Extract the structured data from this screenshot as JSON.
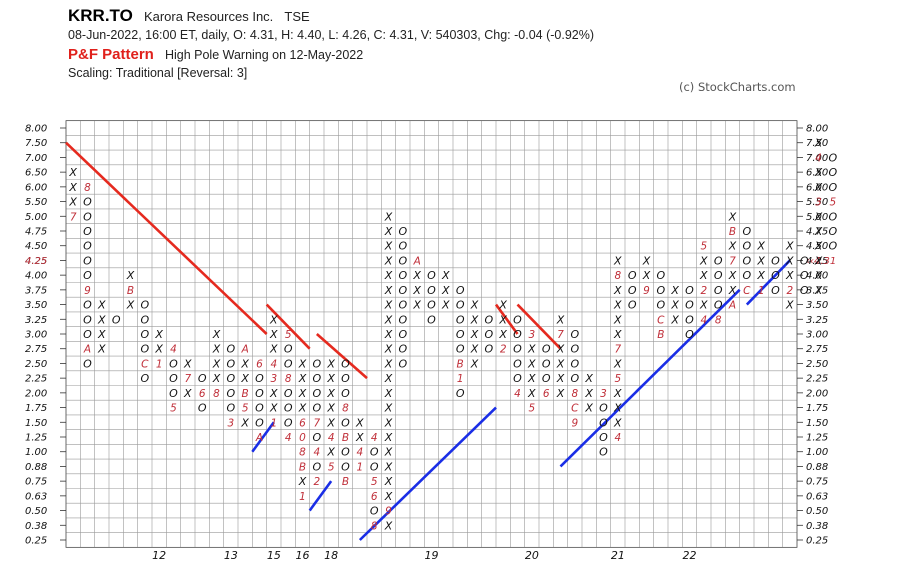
{
  "header": {
    "ticker": "KRR.TO",
    "company": "Karora Resources Inc.",
    "exchange": "TSE",
    "ohlc_line": "08-Jun-2022, 16:00 ET, daily, O: 4.31, H: 4.40, L: 4.26, C: 4.31, V: 540303, Chg: -0.04 (-0.92%)",
    "pattern_label": "P&F Pattern",
    "pattern_text": "High Pole Warning on 12-May-2022",
    "scaling_text": "Scaling: Traditional [Reversal: 3]",
    "copyright": "(c) StockCharts.com"
  },
  "chart_data": {
    "type": "point-and-figure",
    "reversal": 3,
    "price_levels": [
      "8.00",
      "7.50",
      "7.00",
      "6.50",
      "6.00",
      "5.50",
      "5.00",
      "4.75",
      "4.50",
      "4.25",
      "4.00",
      "3.75",
      "3.50",
      "3.25",
      "3.00",
      "2.75",
      "2.50",
      "2.25",
      "2.00",
      "1.75",
      "1.50",
      "1.25",
      "1.00",
      "0.88",
      "0.75",
      "0.63",
      "0.50",
      "0.38",
      "0.25"
    ],
    "last_price": "4.31",
    "last_price_marker": "‹‹4.31",
    "left_highlight_label": "4.25",
    "year_labels": [
      {
        "col": 6,
        "label": "12"
      },
      {
        "col": 11,
        "label": "13"
      },
      {
        "col": 14,
        "label": "15"
      },
      {
        "col": 16,
        "label": "16"
      },
      {
        "col": 18,
        "label": "18"
      },
      {
        "col": 25,
        "label": "19"
      },
      {
        "col": 32,
        "label": "20"
      },
      {
        "col": 38,
        "label": "21"
      },
      {
        "col": 43,
        "label": "22"
      }
    ],
    "columns": [
      {
        "type": "X",
        "top": "6.50",
        "bottom": "5.00",
        "labels": {
          "5.00": "7"
        }
      },
      {
        "type": "O",
        "top": "6.00",
        "bottom": "2.50",
        "labels": {
          "6.00": "8",
          "3.75": "9",
          "2.75": "A"
        }
      },
      {
        "type": "X",
        "top": "3.50",
        "bottom": "2.75"
      },
      {
        "type": "O",
        "top": "3.25",
        "bottom": "3.25"
      },
      {
        "type": "X",
        "top": "4.00",
        "bottom": "3.50",
        "labels": {
          "3.75": "B"
        }
      },
      {
        "type": "O",
        "top": "3.50",
        "bottom": "2.25",
        "labels": {
          "2.50": "C"
        }
      },
      {
        "type": "X",
        "top": "3.00",
        "bottom": "2.50",
        "labels": {
          "2.50": "1"
        }
      },
      {
        "type": "O",
        "top": "2.75",
        "bottom": "1.75",
        "labels": {
          "2.75": "4",
          "1.75": "5"
        }
      },
      {
        "type": "X",
        "top": "2.50",
        "bottom": "2.00",
        "labels": {
          "2.25": "7"
        }
      },
      {
        "type": "O",
        "top": "2.25",
        "bottom": "1.75",
        "labels": {
          "2.00": "6"
        }
      },
      {
        "type": "X",
        "top": "3.00",
        "bottom": "2.00",
        "labels": {
          "2.00": "8"
        }
      },
      {
        "type": "O",
        "top": "2.75",
        "bottom": "1.50",
        "labels": {
          "1.50": "3"
        }
      },
      {
        "type": "X",
        "top": "2.75",
        "bottom": "1.50",
        "labels": {
          "2.75": "A",
          "2.00": "B",
          "1.75": "5"
        }
      },
      {
        "type": "O",
        "top": "2.50",
        "bottom": "1.25",
        "labels": {
          "2.50": "6",
          "1.25": "A"
        }
      },
      {
        "type": "X",
        "top": "3.25",
        "bottom": "1.50",
        "labels": {
          "2.50": "4",
          "2.25": "3",
          "1.50": "1"
        }
      },
      {
        "type": "O",
        "top": "3.00",
        "bottom": "1.25",
        "labels": {
          "3.00": "5",
          "2.25": "8",
          "1.25": "4"
        }
      },
      {
        "type": "X",
        "top": "2.50",
        "bottom": "0.63",
        "labels": {
          "1.50": "6",
          "1.25": "0",
          "1.00": "8",
          "0.88": "B",
          "0.63": "1"
        }
      },
      {
        "type": "O",
        "top": "2.50",
        "bottom": "0.75",
        "labels": {
          "1.50": "7",
          "1.00": "4",
          "0.75": "2"
        }
      },
      {
        "type": "X",
        "top": "2.50",
        "bottom": "0.88",
        "labels": {
          "2.75": "5",
          "1.25": "4",
          "0.88": "5"
        }
      },
      {
        "type": "O",
        "top": "2.50",
        "bottom": "0.75",
        "labels": {
          "1.75": "8",
          "1.25": "B",
          "0.75": "B"
        }
      },
      {
        "type": "X",
        "top": "1.50",
        "bottom": "0.88",
        "labels": {
          "1.00": "4",
          "0.88": "1"
        }
      },
      {
        "type": "O",
        "top": "1.25",
        "bottom": "0.38",
        "labels": {
          "1.25": "4",
          "0.75": "5",
          "0.63": "6",
          "0.38": "8"
        }
      },
      {
        "type": "X",
        "top": "5.00",
        "bottom": "0.38",
        "labels": {
          "0.50": "9"
        }
      },
      {
        "type": "O",
        "top": "4.75",
        "bottom": "2.50"
      },
      {
        "type": "X",
        "top": "4.25",
        "bottom": "3.50",
        "labels": {
          "4.25": "A"
        }
      },
      {
        "type": "O",
        "top": "4.00",
        "bottom": "3.25"
      },
      {
        "type": "X",
        "top": "4.00",
        "bottom": "3.50"
      },
      {
        "type": "O",
        "top": "3.75",
        "bottom": "2.00",
        "labels": {
          "2.50": "B",
          "2.25": "1"
        }
      },
      {
        "type": "X",
        "top": "3.50",
        "bottom": "2.50"
      },
      {
        "type": "O",
        "top": "3.25",
        "bottom": "2.75"
      },
      {
        "type": "X",
        "top": "3.50",
        "bottom": "2.75",
        "labels": {
          "2.75": "2"
        }
      },
      {
        "type": "O",
        "top": "3.25",
        "bottom": "2.00",
        "labels": {
          "2.00": "4"
        }
      },
      {
        "type": "X",
        "top": "3.00",
        "bottom": "1.75",
        "labels": {
          "3.00": "3",
          "1.75": "5"
        }
      },
      {
        "type": "O",
        "top": "2.75",
        "bottom": "2.00",
        "labels": {
          "2.00": "6"
        }
      },
      {
        "type": "X",
        "top": "3.25",
        "bottom": "2.00",
        "labels": {
          "3.00": "7"
        }
      },
      {
        "type": "O",
        "top": "3.00",
        "bottom": "1.50",
        "labels": {
          "1.50": "9",
          "1.75": "C",
          "2.00": "8"
        }
      },
      {
        "type": "X",
        "top": "2.25",
        "bottom": "1.75"
      },
      {
        "type": "O",
        "top": "2.00",
        "bottom": "1.00",
        "labels": {
          "2.00": "3"
        }
      },
      {
        "type": "X",
        "top": "4.25",
        "bottom": "1.25",
        "labels": {
          "1.25": "4",
          "4.00": "8",
          "2.75": "7",
          "2.25": "5"
        }
      },
      {
        "type": "O",
        "top": "4.00",
        "bottom": "3.50"
      },
      {
        "type": "X",
        "top": "4.25",
        "bottom": "3.75",
        "labels": {
          "3.75": "9"
        }
      },
      {
        "type": "O",
        "top": "4.00",
        "bottom": "3.00",
        "labels": {
          "3.00": "B",
          "3.25": "C"
        }
      },
      {
        "type": "X",
        "top": "3.75",
        "bottom": "3.25",
        "labels": {
          "4.00": "A"
        }
      },
      {
        "type": "O",
        "top": "3.75",
        "bottom": "3.00"
      },
      {
        "type": "X",
        "top": "4.50",
        "bottom": "3.25",
        "labels": {
          "4.50": "5",
          "3.75": "2",
          "3.25": "4"
        }
      },
      {
        "type": "O",
        "top": "4.25",
        "bottom": "3.25",
        "labels": {
          "3.25": "8"
        }
      },
      {
        "type": "X",
        "top": "5.00",
        "bottom": "3.50",
        "labels": {
          "4.75": "B",
          "3.50": "A",
          "4.25": "7"
        }
      },
      {
        "type": "O",
        "top": "4.75",
        "bottom": "3.75",
        "labels": {
          "3.75": "C"
        }
      },
      {
        "type": "X",
        "top": "4.50",
        "bottom": "3.75",
        "labels": {
          "3.75": "1"
        }
      },
      {
        "type": "O",
        "top": "4.25",
        "bottom": "3.75"
      },
      {
        "type": "X",
        "top": "4.50",
        "bottom": "3.50",
        "labels": {
          "3.75": "2"
        }
      },
      {
        "type": "O",
        "top": "4.25",
        "bottom": "3.75"
      },
      {
        "type": "X",
        "top": "7.50",
        "bottom": "3.75",
        "labels": {
          "7.00": "4",
          "5.50": "3"
        }
      },
      {
        "type": "O",
        "top": "7.00",
        "bottom": "4.50",
        "labels": {
          "5.50": "5"
        }
      }
    ],
    "trendlines": [
      {
        "color": "red",
        "from": {
          "col": 0.0,
          "price": "7.50"
        },
        "to": {
          "col": 14.0,
          "price": "3.00"
        }
      },
      {
        "color": "red",
        "from": {
          "col": 14.0,
          "price": "3.50"
        },
        "to": {
          "col": 17.0,
          "price": "2.75"
        }
      },
      {
        "color": "red",
        "from": {
          "col": 17.5,
          "price": "3.00"
        },
        "to": {
          "col": 21.0,
          "price": "2.25"
        }
      },
      {
        "color": "red",
        "from": {
          "col": 30.0,
          "price": "3.50"
        },
        "to": {
          "col": 31.5,
          "price": "3.00"
        }
      },
      {
        "color": "red",
        "from": {
          "col": 31.5,
          "price": "3.50"
        },
        "to": {
          "col": 34.5,
          "price": "2.75"
        }
      },
      {
        "color": "blue",
        "from": {
          "col": 13.0,
          "price": "1.00"
        },
        "to": {
          "col": 14.5,
          "price": "1.50"
        }
      },
      {
        "color": "blue",
        "from": {
          "col": 17.0,
          "price": "0.50"
        },
        "to": {
          "col": 18.5,
          "price": "0.75"
        }
      },
      {
        "color": "blue",
        "from": {
          "col": 20.5,
          "price": "0.25"
        },
        "to": {
          "col": 30.0,
          "price": "1.75"
        }
      },
      {
        "color": "blue",
        "from": {
          "col": 34.5,
          "price": "0.88"
        },
        "to": {
          "col": 47.0,
          "price": "3.75"
        }
      },
      {
        "color": "blue",
        "from": {
          "col": 47.5,
          "price": "3.50"
        },
        "to": {
          "col": 50.5,
          "price": "4.25"
        }
      }
    ]
  }
}
